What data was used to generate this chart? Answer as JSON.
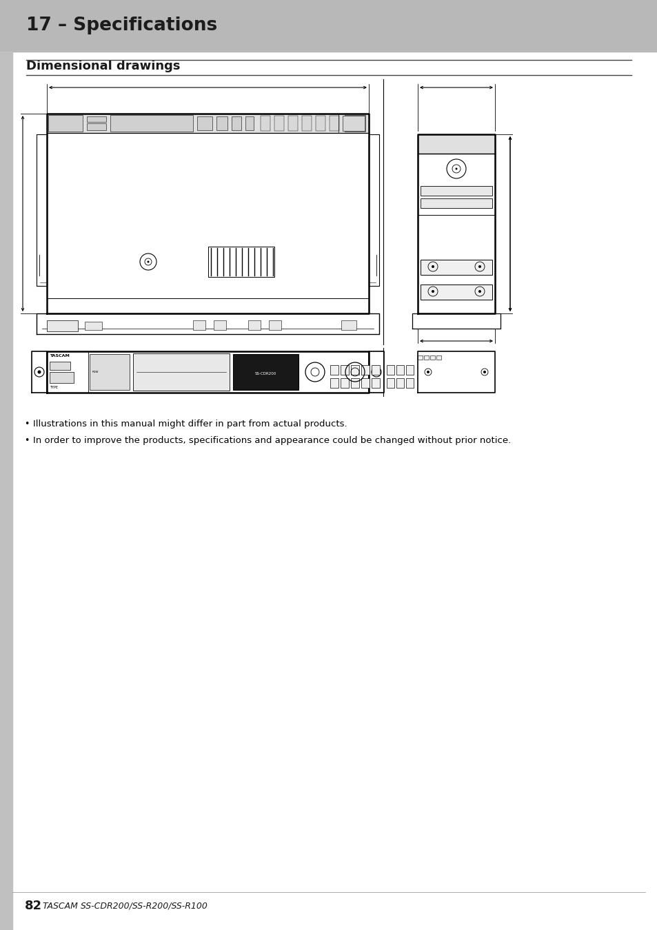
{
  "page_title": "17 – Specifications",
  "section_title": "Dimensional drawings",
  "footer_num": "82",
  "footer_text": "TASCAM SS-CDR200/SS-R200/SS-R100",
  "bullet1": "Illustrations in this manual might differ in part from actual products.",
  "bullet2": "In order to improve the products, specifications and appearance could be changed without prior notice.",
  "bg_header": "#b8b8b8",
  "bg_page": "#ffffff",
  "text_dark": "#1a1a1a",
  "line_color": "#000000",
  "sidebar_color": "#c0c0c0"
}
